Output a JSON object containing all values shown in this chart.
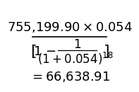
{
  "numerator": "755,199.90 \\times 0.054",
  "denom_outer_left": "[",
  "denom_outer_right": "]",
  "denom_one": "1",
  "denom_minus": "\\u2212",
  "denom_frac_num": "1",
  "denom_frac_den": "(1 + 0.054)",
  "denom_frac_exp": "18",
  "result": "= 66,638.91",
  "bg_color": "#ffffff",
  "text_color": "#000000",
  "font_size_main": 13,
  "font_size_result": 13
}
